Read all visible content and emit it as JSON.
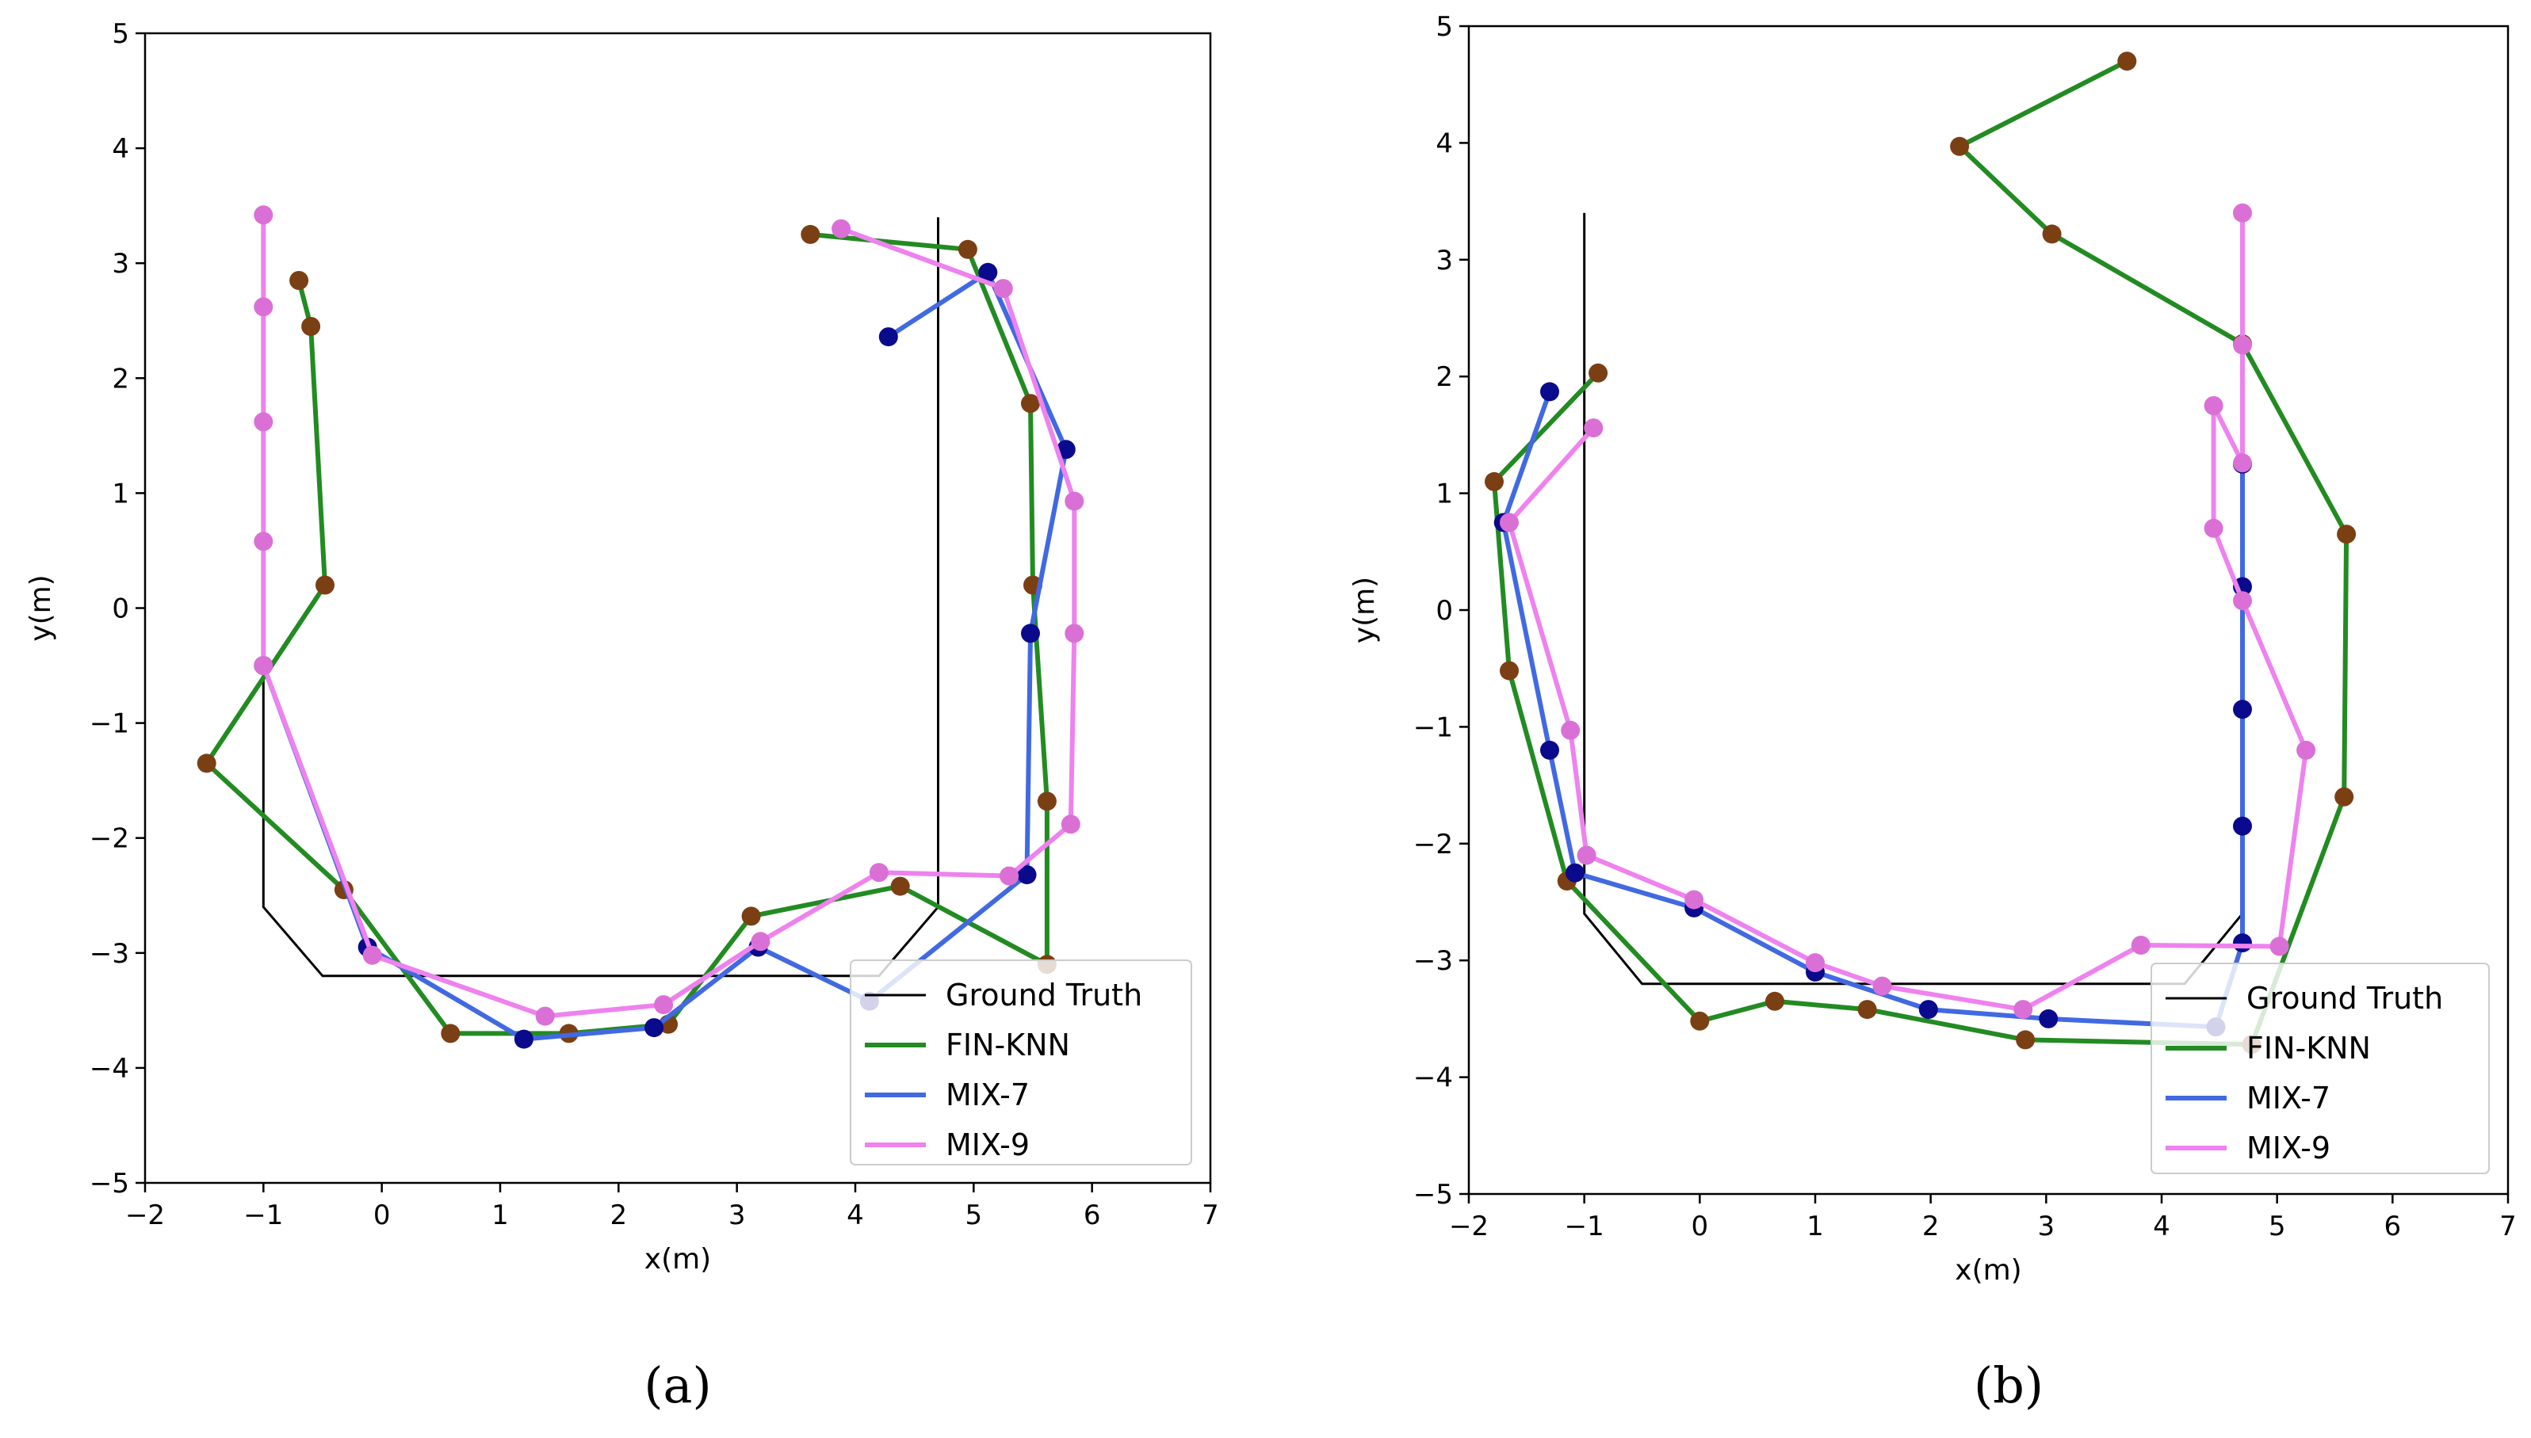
{
  "figure": {
    "colors": {
      "ground_truth": "#000000",
      "FIN-KNN_line": "#228b22",
      "FIN-KNN_marker": "#7b3f14",
      "MIX-7_line": "#4169e1",
      "MIX-7_marker": "#0a0a8c",
      "MIX-9_line": "#ee82ee",
      "MIX-9_marker": "#da70d6"
    }
  },
  "chart_data": [
    {
      "type": "line",
      "panel": "a",
      "caption": "(a)",
      "title": "",
      "xlabel": "x(m)",
      "ylabel": "y(m)",
      "xlim": [
        -2,
        7
      ],
      "ylim": [
        -5,
        5
      ],
      "xticks": [
        -2,
        -1,
        0,
        1,
        2,
        3,
        4,
        5,
        6,
        7
      ],
      "yticks": [
        -5,
        -4,
        -3,
        -2,
        -1,
        0,
        1,
        2,
        3,
        4,
        5
      ],
      "xtick_labels": [
        "−2",
        "−1",
        "0",
        "1",
        "2",
        "3",
        "4",
        "5",
        "6",
        "7"
      ],
      "ytick_labels": [
        "−5",
        "−4",
        "−3",
        "−2",
        "−1",
        "0",
        "1",
        "2",
        "3",
        "4",
        "5"
      ],
      "legend": {
        "position": "lower-right",
        "entries": [
          "Ground Truth",
          "FIN-KNN",
          "MIX-7",
          "MIX-9"
        ]
      },
      "series": [
        {
          "name": "Ground Truth",
          "markers": false,
          "x": [
            -1,
            -1,
            -0.5,
            4.2,
            4.7,
            4.7
          ],
          "y": [
            3.4,
            -2.6,
            -3.2,
            -3.2,
            -2.6,
            3.4
          ]
        },
        {
          "name": "FIN-KNN",
          "markers": true,
          "x": [
            -0.7,
            -0.6,
            -0.48,
            -1.48,
            -0.32,
            0.58,
            1.58,
            2.42,
            3.12,
            4.38,
            5.62,
            5.62,
            5.5,
            5.48,
            4.95,
            3.62
          ],
          "y": [
            2.85,
            2.45,
            0.2,
            -1.35,
            -2.45,
            -3.7,
            -3.7,
            -3.62,
            -2.68,
            -2.42,
            -3.1,
            -1.68,
            0.2,
            1.78,
            3.12,
            3.25
          ]
        },
        {
          "name": "MIX-7",
          "markers": true,
          "x": [
            -1,
            -0.12,
            1.2,
            2.3,
            3.18,
            4.12,
            5.45,
            5.48,
            5.78,
            5.12,
            4.28
          ],
          "y": [
            -0.5,
            -2.95,
            -3.75,
            -3.65,
            -2.95,
            -3.42,
            -2.32,
            -0.22,
            1.38,
            2.92,
            2.36
          ]
        },
        {
          "name": "MIX-9",
          "markers": true,
          "x": [
            -1,
            -1,
            -1,
            -1,
            -1,
            -0.08,
            1.38,
            2.38,
            3.2,
            4.2,
            5.3,
            5.82,
            5.85,
            5.85,
            5.25,
            3.88
          ],
          "y": [
            3.42,
            2.62,
            1.62,
            0.58,
            -0.5,
            -3.02,
            -3.55,
            -3.45,
            -2.9,
            -2.3,
            -2.33,
            -1.88,
            -0.22,
            0.93,
            2.78,
            3.3
          ]
        }
      ]
    },
    {
      "type": "line",
      "panel": "b",
      "caption": "(b)",
      "title": "",
      "xlabel": "x(m)",
      "ylabel": "y(m)",
      "xlim": [
        -2,
        7
      ],
      "ylim": [
        -5,
        5
      ],
      "xticks": [
        -2,
        -1,
        0,
        1,
        2,
        3,
        4,
        5,
        6,
        7
      ],
      "yticks": [
        -5,
        -4,
        -3,
        -2,
        -1,
        0,
        1,
        2,
        3,
        4,
        5
      ],
      "xtick_labels": [
        "−2",
        "−1",
        "0",
        "1",
        "2",
        "3",
        "4",
        "5",
        "6",
        "7"
      ],
      "ytick_labels": [
        "−5",
        "−4",
        "−3",
        "−2",
        "−1",
        "0",
        "1",
        "2",
        "3",
        "4",
        "5"
      ],
      "legend": {
        "position": "lower-right",
        "entries": [
          "Ground Truth",
          "FIN-KNN",
          "MIX-7",
          "MIX-9"
        ]
      },
      "series": [
        {
          "name": "Ground Truth",
          "markers": false,
          "x": [
            -1,
            -1,
            -0.5,
            4.2,
            4.7,
            4.7
          ],
          "y": [
            3.4,
            -2.6,
            -3.2,
            -3.2,
            -2.6,
            3.4
          ]
        },
        {
          "name": "FIN-KNN",
          "markers": true,
          "x": [
            -0.88,
            -1.78,
            -1.65,
            -1.15,
            0,
            0.65,
            1.45,
            2.82,
            4.78,
            5.58,
            5.6,
            4.7,
            3.05,
            2.25,
            3.7
          ],
          "y": [
            2.03,
            1.1,
            -0.52,
            -2.32,
            -3.52,
            -3.35,
            -3.42,
            -3.68,
            -3.72,
            -1.6,
            0.65,
            2.28,
            3.22,
            3.97,
            4.7
          ]
        },
        {
          "name": "MIX-7",
          "markers": true,
          "x": [
            -1.3,
            -1.7,
            -1.3,
            -1.08,
            -0.05,
            1,
            1.98,
            3.02,
            4.47,
            4.7,
            4.7,
            4.7,
            4.7,
            4.7
          ],
          "y": [
            1.87,
            0.75,
            -1.2,
            -2.25,
            -2.55,
            -3.1,
            -3.42,
            -3.5,
            -3.57,
            -2.85,
            -1.85,
            -0.85,
            0.2,
            1.25
          ]
        },
        {
          "name": "MIX-9",
          "markers": true,
          "x": [
            -0.92,
            -1.65,
            -1.12,
            -0.98,
            -0.05,
            1,
            1.58,
            2.8,
            3.82,
            5.02,
            5.25,
            4.7,
            4.45,
            4.45,
            4.7,
            4.7,
            4.7
          ],
          "y": [
            1.56,
            0.75,
            -1.03,
            -2.1,
            -2.48,
            -3.02,
            -3.22,
            -3.42,
            -2.87,
            -2.88,
            -1.2,
            0.08,
            0.7,
            1.75,
            1.26,
            2.27,
            3.4
          ]
        }
      ]
    }
  ]
}
